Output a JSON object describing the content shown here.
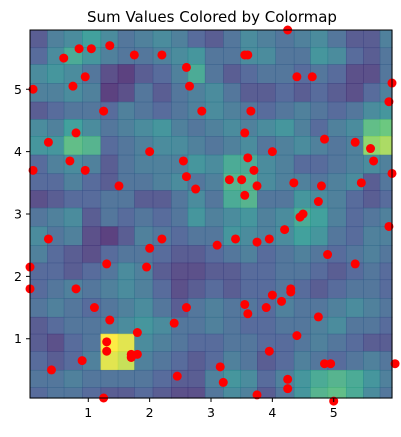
{
  "chart_data": {
    "type": "heatmap",
    "title": "Sum Values Colored by Colormap",
    "xlabel": "",
    "ylabel": "",
    "xlim": [
      0.05,
      5.95
    ],
    "ylim": [
      0.05,
      5.95
    ],
    "x_ticks": [
      1,
      2,
      3,
      4,
      5
    ],
    "y_ticks": [
      1,
      2,
      3,
      4,
      5
    ],
    "grid": false,
    "colormap": "viridis",
    "point_color": "#ff0000",
    "heatmap": {
      "x_edges": [
        0.05,
        0.33,
        0.6,
        0.9,
        1.2,
        1.48,
        1.75,
        2.05,
        2.35,
        2.62,
        2.9,
        3.2,
        3.48,
        3.75,
        4.05,
        4.35,
        4.62,
        4.9,
        5.2,
        5.48,
        5.75,
        5.95
      ],
      "y_edges": [
        5.95,
        5.67,
        5.4,
        5.1,
        4.8,
        4.52,
        4.25,
        3.95,
        3.65,
        3.38,
        3.1,
        2.8,
        2.5,
        2.22,
        1.95,
        1.65,
        1.35,
        1.08,
        0.8,
        0.5,
        0.22,
        0.05
      ],
      "values": [
        [
          0.2,
          0.35,
          0.4,
          0.5,
          0.4,
          0.3,
          0.35,
          0.4,
          0.35,
          0.25,
          0.2,
          0.3,
          0.4,
          0.35,
          0.3,
          0.35,
          0.4,
          0.3,
          0.2,
          0.2,
          0.35
        ],
        [
          0.25,
          0.4,
          0.55,
          0.45,
          0.35,
          0.3,
          0.3,
          0.35,
          0.4,
          0.45,
          0.3,
          0.3,
          0.4,
          0.4,
          0.3,
          0.3,
          0.45,
          0.4,
          0.25,
          0.2,
          0.3
        ],
        [
          0.4,
          0.45,
          0.4,
          0.3,
          0.15,
          0.1,
          0.2,
          0.25,
          0.35,
          0.55,
          0.3,
          0.2,
          0.25,
          0.3,
          0.3,
          0.25,
          0.3,
          0.25,
          0.15,
          0.15,
          0.3
        ],
        [
          0.35,
          0.35,
          0.4,
          0.35,
          0.1,
          0.15,
          0.3,
          0.2,
          0.3,
          0.35,
          0.4,
          0.3,
          0.2,
          0.2,
          0.25,
          0.2,
          0.25,
          0.2,
          0.15,
          0.25,
          0.35
        ],
        [
          0.2,
          0.25,
          0.3,
          0.3,
          0.25,
          0.35,
          0.3,
          0.25,
          0.3,
          0.35,
          0.4,
          0.35,
          0.3,
          0.25,
          0.3,
          0.35,
          0.3,
          0.25,
          0.3,
          0.4,
          0.45
        ],
        [
          0.4,
          0.35,
          0.5,
          0.4,
          0.3,
          0.35,
          0.4,
          0.45,
          0.35,
          0.3,
          0.35,
          0.4,
          0.35,
          0.4,
          0.45,
          0.35,
          0.25,
          0.35,
          0.4,
          0.65,
          0.7
        ],
        [
          0.45,
          0.45,
          0.65,
          0.6,
          0.25,
          0.3,
          0.35,
          0.4,
          0.4,
          0.35,
          0.3,
          0.35,
          0.4,
          0.3,
          0.35,
          0.4,
          0.35,
          0.3,
          0.35,
          0.8,
          0.85
        ],
        [
          0.25,
          0.35,
          0.4,
          0.35,
          0.2,
          0.3,
          0.35,
          0.35,
          0.35,
          0.45,
          0.4,
          0.55,
          0.55,
          0.4,
          0.35,
          0.25,
          0.25,
          0.3,
          0.35,
          0.4,
          0.35
        ],
        [
          0.25,
          0.25,
          0.35,
          0.25,
          0.2,
          0.3,
          0.3,
          0.35,
          0.4,
          0.3,
          0.35,
          0.6,
          0.6,
          0.4,
          0.35,
          0.35,
          0.3,
          0.35,
          0.4,
          0.2,
          0.3
        ],
        [
          0.15,
          0.2,
          0.25,
          0.25,
          0.3,
          0.3,
          0.2,
          0.2,
          0.3,
          0.4,
          0.3,
          0.55,
          0.6,
          0.3,
          0.3,
          0.45,
          0.4,
          0.35,
          0.25,
          0.2,
          0.25
        ],
        [
          0.3,
          0.35,
          0.4,
          0.2,
          0.3,
          0.25,
          0.3,
          0.25,
          0.3,
          0.45,
          0.35,
          0.4,
          0.45,
          0.35,
          0.4,
          0.55,
          0.5,
          0.35,
          0.25,
          0.3,
          0.35
        ],
        [
          0.4,
          0.3,
          0.35,
          0.15,
          0.1,
          0.2,
          0.35,
          0.3,
          0.25,
          0.3,
          0.3,
          0.45,
          0.4,
          0.35,
          0.4,
          0.5,
          0.45,
          0.3,
          0.25,
          0.35,
          0.35
        ],
        [
          0.35,
          0.25,
          0.2,
          0.15,
          0.25,
          0.3,
          0.3,
          0.25,
          0.2,
          0.2,
          0.25,
          0.3,
          0.35,
          0.25,
          0.3,
          0.35,
          0.3,
          0.25,
          0.3,
          0.35,
          0.3
        ],
        [
          0.25,
          0.25,
          0.2,
          0.25,
          0.3,
          0.4,
          0.35,
          0.2,
          0.15,
          0.15,
          0.2,
          0.2,
          0.25,
          0.25,
          0.3,
          0.3,
          0.25,
          0.2,
          0.25,
          0.3,
          0.25
        ],
        [
          0.25,
          0.3,
          0.35,
          0.3,
          0.35,
          0.4,
          0.35,
          0.25,
          0.15,
          0.2,
          0.25,
          0.2,
          0.25,
          0.25,
          0.3,
          0.25,
          0.2,
          0.25,
          0.3,
          0.3,
          0.25
        ],
        [
          0.3,
          0.35,
          0.3,
          0.25,
          0.3,
          0.35,
          0.4,
          0.3,
          0.2,
          0.3,
          0.35,
          0.3,
          0.3,
          0.25,
          0.35,
          0.3,
          0.3,
          0.35,
          0.4,
          0.35,
          0.3
        ],
        [
          0.2,
          0.25,
          0.3,
          0.3,
          0.35,
          0.4,
          0.45,
          0.4,
          0.3,
          0.3,
          0.35,
          0.3,
          0.25,
          0.25,
          0.3,
          0.3,
          0.35,
          0.4,
          0.3,
          0.3,
          0.25
        ],
        [
          0.2,
          0.15,
          0.25,
          0.3,
          1.0,
          0.95,
          0.4,
          0.35,
          0.3,
          0.25,
          0.25,
          0.3,
          0.3,
          0.25,
          0.25,
          0.3,
          0.35,
          0.3,
          0.25,
          0.2,
          0.2
        ],
        [
          0.25,
          0.2,
          0.25,
          0.35,
          0.95,
          0.9,
          0.35,
          0.3,
          0.25,
          0.2,
          0.25,
          0.35,
          0.3,
          0.2,
          0.25,
          0.35,
          0.3,
          0.25,
          0.3,
          0.35,
          0.3
        ],
        [
          0.3,
          0.3,
          0.35,
          0.3,
          0.3,
          0.3,
          0.3,
          0.25,
          0.2,
          0.2,
          0.35,
          0.45,
          0.4,
          0.25,
          0.35,
          0.45,
          0.55,
          0.6,
          0.55,
          0.45,
          0.35
        ],
        [
          0.25,
          0.3,
          0.3,
          0.25,
          0.2,
          0.2,
          0.25,
          0.2,
          0.15,
          0.15,
          0.3,
          0.4,
          0.35,
          0.2,
          0.3,
          0.45,
          0.6,
          0.65,
          0.55,
          0.4,
          0.3
        ]
      ]
    },
    "scatter": {
      "x": [
        0.85,
        1.05,
        1.35,
        0.6,
        0.95,
        0.75,
        1.75,
        2.2,
        3.6,
        3.55,
        2.6,
        2.65,
        4.25,
        4.65,
        4.4,
        3.65,
        5.95,
        5.9,
        0.1,
        0.8,
        1.25,
        2.85,
        0.35,
        0.7,
        0.95,
        0.1,
        2.0,
        2.55,
        2.6,
        1.5,
        2.75,
        3.3,
        3.5,
        3.55,
        3.6,
        3.7,
        3.75,
        3.55,
        4.85,
        4.75,
        5.35,
        5.6,
        5.65,
        5.95,
        4.0,
        4.35,
        4.5,
        4.45,
        4.8,
        5.45,
        5.9,
        5.35,
        4.9,
        0.35,
        2.0,
        2.2,
        1.95,
        3.4,
        3.75,
        3.95,
        3.1,
        4.2,
        0.05,
        0.05,
        1.3,
        0.8,
        1.1,
        1.35,
        1.8,
        2.4,
        2.6,
        3.55,
        3.6,
        4.3,
        4.15,
        4.0,
        3.9,
        4.3,
        4.75,
        4.4,
        3.95,
        1.3,
        1.3,
        1.7,
        1.8,
        1.7,
        0.9,
        0.4,
        2.45,
        3.15,
        3.2,
        3.75,
        4.25,
        4.25,
        4.85,
        4.95,
        5.0,
        6.0,
        1.25
      ],
      "y": [
        5.65,
        5.65,
        5.7,
        5.5,
        5.2,
        5.05,
        5.55,
        5.55,
        5.55,
        5.55,
        5.35,
        5.05,
        5.95,
        5.2,
        5.2,
        4.65,
        5.1,
        4.8,
        5.0,
        4.3,
        4.65,
        4.65,
        4.15,
        3.85,
        3.7,
        3.7,
        4.0,
        3.85,
        3.6,
        3.45,
        3.4,
        3.55,
        3.55,
        4.3,
        3.9,
        3.7,
        3.45,
        3.3,
        4.2,
        3.2,
        4.15,
        4.05,
        3.85,
        3.65,
        4.0,
        3.5,
        3.0,
        2.95,
        3.45,
        3.5,
        2.8,
        2.2,
        2.35,
        2.6,
        2.45,
        2.6,
        2.15,
        2.6,
        2.55,
        2.6,
        2.5,
        2.75,
        2.15,
        1.8,
        2.2,
        1.8,
        1.5,
        1.3,
        1.1,
        1.25,
        1.5,
        1.55,
        1.4,
        1.75,
        1.6,
        1.7,
        1.5,
        1.8,
        1.35,
        1.05,
        0.8,
        0.95,
        0.8,
        0.75,
        0.75,
        0.7,
        0.65,
        0.5,
        0.4,
        0.55,
        0.3,
        0.1,
        0.35,
        0.2,
        0.6,
        0.6,
        0.0,
        0.6,
        0.05
      ]
    }
  }
}
